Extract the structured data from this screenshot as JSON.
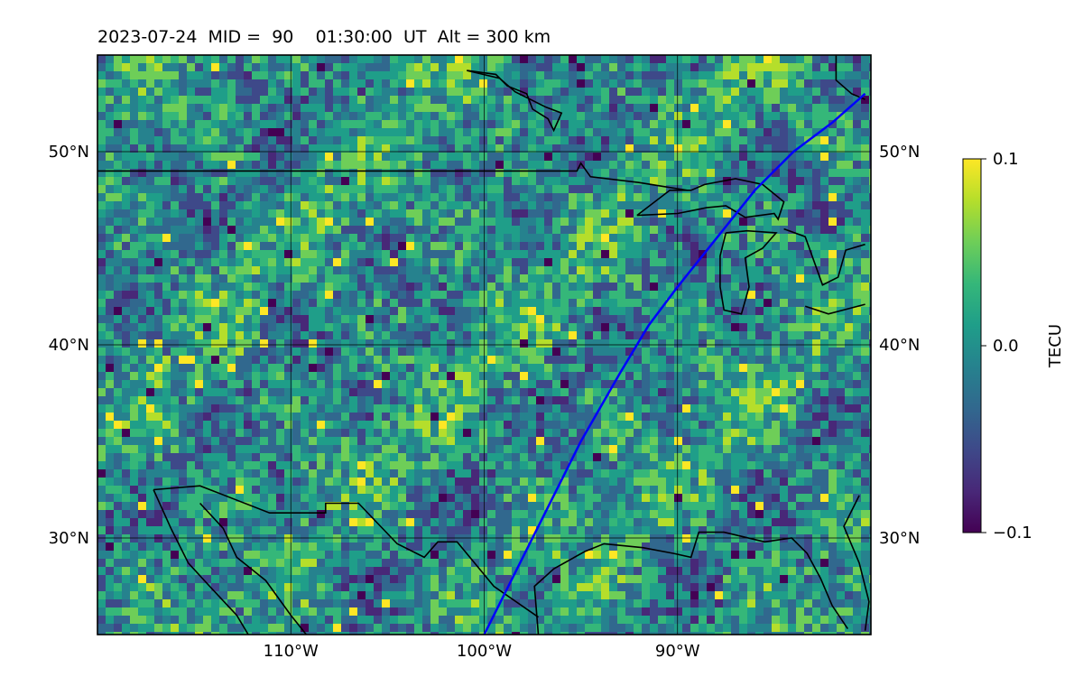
{
  "header": {
    "date": "2023-07-24",
    "mid_label": "MID =",
    "mid_value": "90",
    "time": "01:30:00",
    "time_zone": "UT",
    "altitude_label": "Alt = 300 km"
  },
  "map": {
    "lon_range": [
      -120,
      -80
    ],
    "lat_range": [
      25,
      55
    ],
    "lon_ticks": [
      {
        "value": -110,
        "label": "110°W"
      },
      {
        "value": -100,
        "label": "100°W"
      },
      {
        "value": -90,
        "label": "90°W"
      }
    ],
    "lat_ticks": [
      {
        "value": 50,
        "label": "50°N"
      },
      {
        "value": 40,
        "label": "40°N"
      },
      {
        "value": 30,
        "label": "30°N"
      }
    ],
    "gridlines": true,
    "terminator_color": "#0000ff",
    "terminator_path_lonlat": [
      [
        -100.0,
        25.0
      ],
      [
        -98.5,
        28.0
      ],
      [
        -97.0,
        31.0
      ],
      [
        -95.0,
        35.0
      ],
      [
        -93.0,
        38.5
      ],
      [
        -91.5,
        41.0
      ],
      [
        -90.0,
        43.0
      ],
      [
        -88.0,
        45.5
      ],
      [
        -86.0,
        48.0
      ],
      [
        -84.0,
        50.0
      ],
      [
        -82.0,
        51.5
      ],
      [
        -80.3,
        53.0
      ]
    ],
    "feature_paths_lonlat": {
      "us_canada_border": [
        [
          -120,
          49
        ],
        [
          -95.2,
          49
        ],
        [
          -95,
          49.4
        ],
        [
          -94.5,
          48.7
        ],
        [
          -92,
          48.4
        ],
        [
          -89.5,
          48.0
        ]
      ],
      "hudson_bay_shore": [
        [
          -100.9,
          54.2
        ],
        [
          -99.4,
          54.0
        ],
        [
          -98.8,
          53.4
        ],
        [
          -97.8,
          53.0
        ],
        [
          -97.5,
          52.2
        ],
        [
          -96.7,
          51.7
        ],
        [
          -96.4,
          51.1
        ],
        [
          -96.0,
          52.0
        ],
        [
          -96.8,
          52.3
        ],
        [
          -98.4,
          53.1
        ],
        [
          -99.2,
          53.8
        ],
        [
          -100.9,
          54.2
        ]
      ],
      "ontario_shore": [
        [
          -81.8,
          55
        ],
        [
          -81.8,
          53.7
        ],
        [
          -81.0,
          53.0
        ],
        [
          -80.3,
          52.7
        ]
      ],
      "lake_superior": [
        [
          -92.1,
          46.7
        ],
        [
          -90.0,
          46.8
        ],
        [
          -88.5,
          47.1
        ],
        [
          -87.5,
          47.2
        ],
        [
          -86.5,
          46.6
        ],
        [
          -85.0,
          46.8
        ],
        [
          -84.8,
          46.5
        ],
        [
          -84.5,
          47.4
        ],
        [
          -85.6,
          48.3
        ],
        [
          -87.0,
          48.6
        ],
        [
          -88.6,
          48.3
        ],
        [
          -89.3,
          48.0
        ],
        [
          -90.4,
          48.0
        ],
        [
          -92.1,
          46.7
        ]
      ],
      "lake_michigan": [
        [
          -87.5,
          45.8
        ],
        [
          -87.8,
          44.6
        ],
        [
          -87.8,
          43.0
        ],
        [
          -87.6,
          41.8
        ],
        [
          -86.7,
          41.6
        ],
        [
          -86.3,
          43.0
        ],
        [
          -86.5,
          44.5
        ],
        [
          -85.6,
          45.0
        ],
        [
          -84.9,
          45.8
        ],
        [
          -86.4,
          45.9
        ],
        [
          -87.5,
          45.8
        ]
      ],
      "lake_huron": [
        [
          -84.5,
          46.0
        ],
        [
          -83.4,
          45.6
        ],
        [
          -82.5,
          43.1
        ],
        [
          -81.7,
          43.5
        ],
        [
          -81.3,
          44.9
        ],
        [
          -80.3,
          45.2
        ]
      ],
      "lake_erie": [
        [
          -83.4,
          42.0
        ],
        [
          -82.2,
          41.6
        ],
        [
          -80.3,
          42.1
        ]
      ],
      "mexico_border": [
        [
          -117.1,
          32.5
        ],
        [
          -114.7,
          32.7
        ],
        [
          -111.1,
          31.3
        ],
        [
          -108.2,
          31.3
        ],
        [
          -108.2,
          31.8
        ],
        [
          -106.5,
          31.8
        ],
        [
          -104.5,
          29.7
        ],
        [
          -103.1,
          29.0
        ],
        [
          -102.4,
          29.8
        ],
        [
          -101.4,
          29.8
        ],
        [
          -99.5,
          27.5
        ],
        [
          -97.2,
          25.9
        ]
      ],
      "baja_coast": [
        [
          -117.1,
          32.5
        ],
        [
          -116.2,
          30.5
        ],
        [
          -115.3,
          28.7
        ],
        [
          -114.2,
          27.5
        ],
        [
          -112.8,
          26.0
        ],
        [
          -112.2,
          25
        ]
      ],
      "gulf_of_california": [
        [
          -114.7,
          31.8
        ],
        [
          -113.5,
          30.5
        ],
        [
          -112.8,
          29.0
        ],
        [
          -111.3,
          27.8
        ],
        [
          -110.0,
          26.0
        ],
        [
          -109.2,
          25
        ]
      ],
      "gulf_coast": [
        [
          -97.2,
          25.0
        ],
        [
          -97.4,
          27.5
        ],
        [
          -96.4,
          28.4
        ],
        [
          -94.8,
          29.3
        ],
        [
          -93.8,
          29.7
        ],
        [
          -91.8,
          29.5
        ],
        [
          -90.2,
          29.2
        ],
        [
          -89.3,
          29.0
        ],
        [
          -88.9,
          30.3
        ],
        [
          -87.6,
          30.3
        ],
        [
          -85.5,
          29.8
        ],
        [
          -84.1,
          30.0
        ],
        [
          -83.3,
          29.2
        ],
        [
          -82.6,
          27.9
        ],
        [
          -82.0,
          26.5
        ],
        [
          -81.2,
          25.3
        ]
      ],
      "atlantic_coast": [
        [
          -80.3,
          25.2
        ],
        [
          -80.1,
          26.7
        ],
        [
          -80.6,
          28.7
        ],
        [
          -81.4,
          30.6
        ],
        [
          -80.6,
          32.2
        ]
      ]
    }
  },
  "colorbar": {
    "label": "TECU",
    "min": -0.1,
    "max": 0.1,
    "ticks": [
      {
        "value": 0.1,
        "label": "0.1"
      },
      {
        "value": 0.0,
        "label": "0.0"
      },
      {
        "value": -0.1,
        "label": "−0.1"
      }
    ],
    "colormap": [
      "#440154",
      "#482878",
      "#3e4989",
      "#31688e",
      "#26828e",
      "#1f9e89",
      "#35b779",
      "#6ece58",
      "#b5de2b",
      "#fde725"
    ]
  }
}
